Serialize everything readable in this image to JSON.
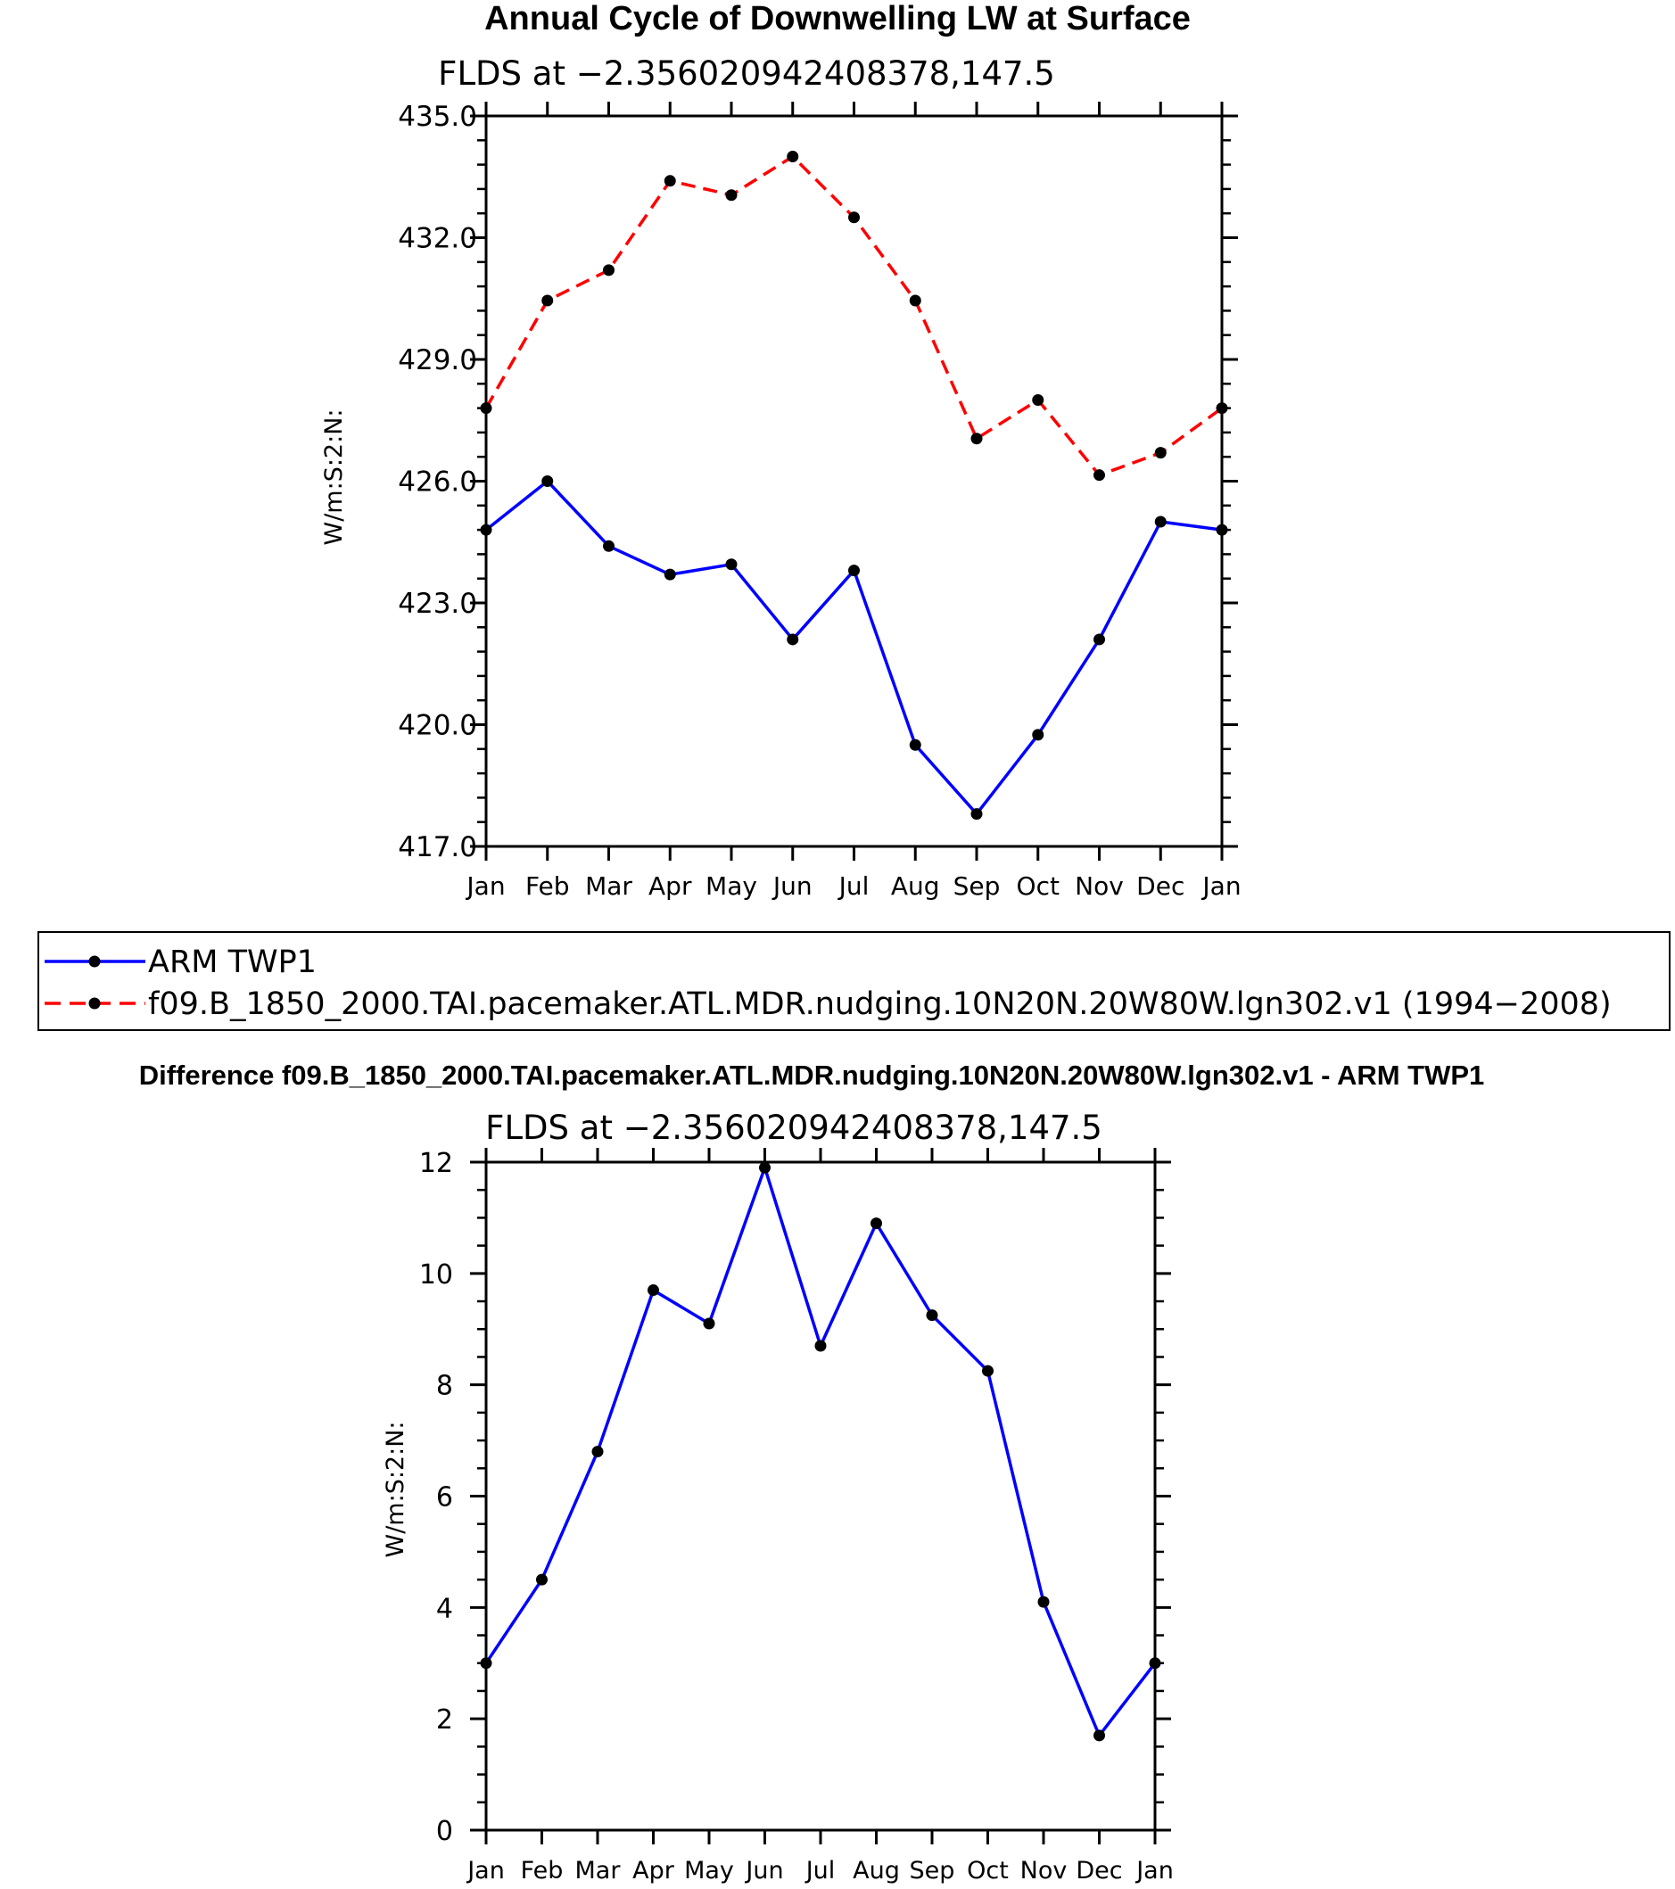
{
  "chart_data": [
    {
      "type": "line",
      "title": "Annual Cycle of Downwelling LW at Surface",
      "subtitle": "FLDS at −2.356020942408378,147.5",
      "ylabel": "W/m:S:2:N:",
      "xlabel": "",
      "categories": [
        "Jan",
        "Feb",
        "Mar",
        "Apr",
        "May",
        "Jun",
        "Jul",
        "Aug",
        "Sep",
        "Oct",
        "Nov",
        "Dec",
        "Jan"
      ],
      "ylim": [
        417.0,
        435.0
      ],
      "yticks": [
        "417.0",
        "420.0",
        "423.0",
        "426.0",
        "429.0",
        "432.0",
        "435.0"
      ],
      "ytick_values": [
        417,
        420,
        423,
        426,
        429,
        432,
        435
      ],
      "series": [
        {
          "name": "ARM  TWP1",
          "color": "#0000ff",
          "style": "solid",
          "values": [
            424.8,
            426.0,
            424.4,
            423.7,
            423.95,
            422.1,
            423.8,
            419.5,
            417.8,
            419.75,
            422.1,
            425.0,
            424.8
          ]
        },
        {
          "name": "f09.B_1850_2000.TAI.pacemaker.ATL.MDR.nudging.10N20N.20W80W.lgn302.v1  (1994−2008)",
          "color": "#ff0000",
          "style": "dashed",
          "values": [
            427.8,
            430.45,
            431.2,
            433.4,
            433.05,
            434.0,
            432.5,
            430.45,
            427.05,
            428.0,
            426.15,
            426.7,
            427.8
          ]
        }
      ],
      "legend": "below",
      "grid": false
    },
    {
      "type": "line",
      "title": "Difference f09.B_1850_2000.TAI.pacemaker.ATL.MDR.nudging.10N20N.20W80W.lgn302.v1 - ARM TWP1",
      "subtitle": "FLDS at −2.356020942408378,147.5",
      "ylabel": "W/m:S:2:N:",
      "xlabel": "",
      "categories": [
        "Jan",
        "Feb",
        "Mar",
        "Apr",
        "May",
        "Jun",
        "Jul",
        "Aug",
        "Sep",
        "Oct",
        "Nov",
        "Dec",
        "Jan"
      ],
      "ylim": [
        0,
        12
      ],
      "yticks": [
        "0",
        "2",
        "4",
        "6",
        "8",
        "10",
        "12"
      ],
      "ytick_values": [
        0,
        2,
        4,
        6,
        8,
        10,
        12
      ],
      "series": [
        {
          "name": "Difference",
          "color": "#0000ff",
          "style": "solid",
          "values": [
            3.0,
            4.5,
            6.8,
            9.7,
            9.1,
            11.9,
            8.7,
            10.9,
            9.25,
            8.25,
            4.1,
            1.7,
            3.0
          ]
        }
      ],
      "grid": false
    }
  ]
}
